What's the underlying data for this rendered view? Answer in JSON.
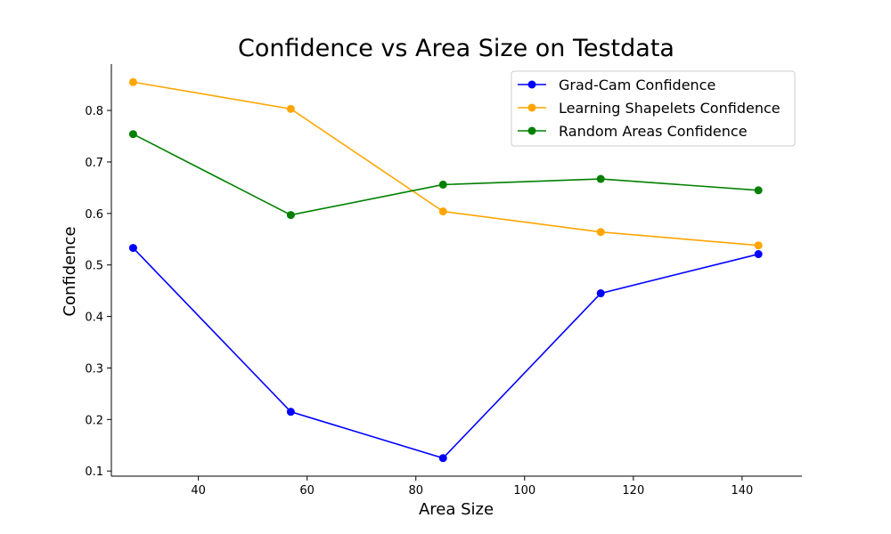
{
  "chart_data": {
    "type": "line",
    "title": "Confidence vs Area Size on Testdata",
    "xlabel": "Area Size",
    "ylabel": "Confidence",
    "xlim": [
      24,
      151
    ],
    "ylim": [
      0.09,
      0.89
    ],
    "xticks": [
      40,
      60,
      80,
      100,
      120,
      140
    ],
    "yticks": [
      0.1,
      0.2,
      0.3,
      0.4,
      0.5,
      0.6,
      0.7,
      0.8
    ],
    "x": [
      28,
      57,
      85,
      114,
      143
    ],
    "series": [
      {
        "name": "Grad-Cam Confidence",
        "color": "#0000ff",
        "values": [
          0.533,
          0.215,
          0.125,
          0.445,
          0.521
        ]
      },
      {
        "name": "Learning Shapelets Confidence",
        "color": "#ffa500",
        "values": [
          0.855,
          0.803,
          0.604,
          0.564,
          0.538
        ]
      },
      {
        "name": "Random Areas Confidence",
        "color": "#008000",
        "values": [
          0.754,
          0.597,
          0.656,
          0.667,
          0.645
        ]
      }
    ],
    "grid": false,
    "legend": "top-right"
  }
}
